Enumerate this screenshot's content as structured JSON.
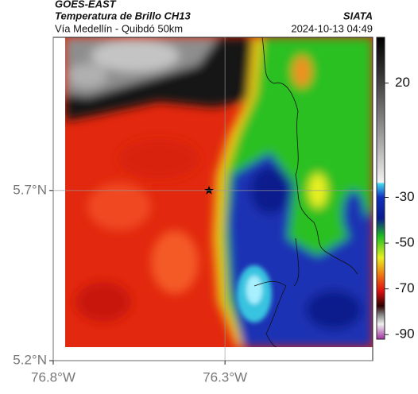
{
  "header": {
    "satellite": "GOES-EAST",
    "product": "Temperatura de Brillo CH13",
    "route": "Vía Medellín - Quibdó 50km",
    "source": "SIATA",
    "datetime": "2024-10-13 04:49"
  },
  "map": {
    "lat_lim": [
      5.2,
      6.15
    ],
    "lon_lim": [
      -76.8,
      -75.87
    ],
    "lat_ticks": [
      {
        "value": 5.7,
        "label": "5.7°N"
      },
      {
        "value": 5.2,
        "label": "5.2°N"
      }
    ],
    "lon_ticks": [
      {
        "value": -76.8,
        "label": "76.8°W"
      },
      {
        "value": -76.3,
        "label": "76.3°W"
      }
    ]
  },
  "colorbar": {
    "lim": [
      40,
      -92
    ],
    "ticks": [
      20,
      -30,
      -50,
      -70,
      -90
    ]
  }
}
